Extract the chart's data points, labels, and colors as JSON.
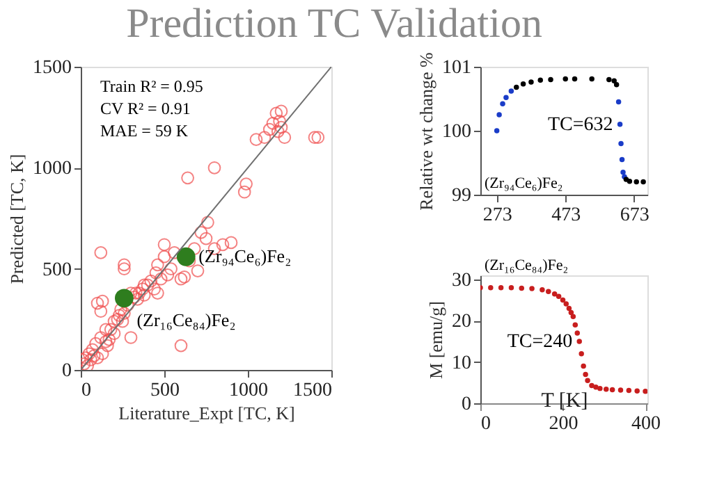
{
  "chart_data": [
    {
      "type": "scatter",
      "title": "Prediction TC Validation",
      "xlabel": "Literature_Expt [TC, K]",
      "ylabel": "Predicted [TC, K]",
      "xlim": [
        0,
        1500
      ],
      "ylim": [
        0,
        1500
      ],
      "xticks": [
        0,
        500,
        1000,
        1500
      ],
      "yticks": [
        0,
        500,
        1000,
        1500
      ],
      "grid": false,
      "series": [
        {
          "type": "scatter",
          "marker": "circle",
          "color": "#f05050",
          "x": [
            10,
            20,
            30,
            40,
            50,
            60,
            70,
            80,
            90,
            100,
            120,
            130,
            150,
            160,
            170,
            180,
            200,
            220,
            240,
            250,
            260,
            280,
            300,
            320,
            340,
            350,
            370,
            380,
            400,
            420,
            440,
            450,
            460,
            480,
            500,
            500,
            520,
            540,
            600,
            620,
            650,
            680,
            700,
            720,
            750,
            760,
            800,
            850,
            900,
            640,
            800,
            980,
            990,
            1050,
            1100,
            1130,
            1150,
            1170,
            1180,
            1200,
            1200,
            1220,
            1400,
            1420,
            120,
            260,
            260,
            100,
            120,
            130,
            600,
            300,
            150,
            200,
            230,
            330,
            380,
            460,
            560,
            1190
          ],
          "values": [
            50,
            30,
            60,
            20,
            80,
            50,
            100,
            70,
            130,
            60,
            160,
            80,
            140,
            120,
            150,
            200,
            180,
            250,
            300,
            240,
            280,
            320,
            380,
            360,
            350,
            380,
            400,
            370,
            420,
            440,
            400,
            480,
            520,
            450,
            560,
            620,
            470,
            500,
            450,
            460,
            540,
            600,
            490,
            680,
            650,
            730,
            600,
            620,
            630,
            950,
            1000,
            880,
            920,
            1140,
            1150,
            1190,
            1220,
            1270,
            1180,
            1200,
            1280,
            1150,
            1150,
            1150,
            580,
            500,
            520,
            330,
            290,
            340,
            120,
            160,
            200,
            240,
            270,
            380,
            420,
            380,
            580,
            1230
          ]
        },
        {
          "type": "scatter",
          "marker": "circle",
          "color": "#2e7d1e",
          "x": [
            260,
            630
          ],
          "values": [
            355,
            560
          ]
        },
        {
          "type": "line",
          "marker": "none",
          "color": "#707070",
          "x": [
            0,
            1500
          ],
          "values": [
            0,
            1500
          ]
        }
      ],
      "annotations": [
        "Train R² = 0.95",
        "CV R² = 0.91",
        "MAE   = 59 K",
        {
          "text": "(Zr₉₄Ce₆)Fe₂",
          "x": 630,
          "y": 560
        },
        {
          "text": "(Zr₁₆Ce₈₄)Fe₂",
          "x": 260,
          "y": 355
        }
      ]
    },
    {
      "type": "scatter",
      "ylabel": "Relative wt change %",
      "xlim": [
        225,
        712
      ],
      "ylim": [
        99,
        101
      ],
      "xticks": [
        273,
        473,
        673
      ],
      "yticks": [
        99,
        100,
        101
      ],
      "grid": false,
      "series": [
        {
          "type": "scatter",
          "marker": "circle",
          "x": [
            273,
            280,
            290,
            300,
            315,
            330,
            350,
            373,
            400,
            430,
            473,
            500,
            550,
            600,
            615,
            622,
            628,
            632,
            635,
            638,
            641,
            645,
            650,
            660,
            680,
            700
          ],
          "values": [
            100.0,
            100.25,
            100.42,
            100.52,
            100.62,
            100.68,
            100.73,
            100.76,
            100.79,
            100.8,
            100.81,
            100.81,
            100.81,
            100.8,
            100.78,
            100.72,
            100.45,
            100.1,
            99.8,
            99.55,
            99.35,
            99.28,
            99.24,
            99.21,
            99.2,
            99.2
          ],
          "colors": [
            "#1a3cc8",
            "#1a3cc8",
            "#1a3cc8",
            "#1a3cc8",
            "#1a3cc8",
            "#000000",
            "#000000",
            "#000000",
            "#000000",
            "#000000",
            "#000000",
            "#000000",
            "#000000",
            "#000000",
            "#000000",
            "#000000",
            "#1a3cc8",
            "#1a3cc8",
            "#1a3cc8",
            "#1a3cc8",
            "#1a3cc8",
            "#1a3cc8",
            "#000000",
            "#000000",
            "#000000",
            "#000000"
          ]
        }
      ],
      "annotations": [
        {
          "text": "TC=632",
          "x": 632,
          "y": 100.1
        },
        "(Zr₉₄Ce₆)Fe₂"
      ]
    },
    {
      "type": "scatter",
      "xlabel": "T [K]",
      "ylabel": "M [emu/g]",
      "xlim": [
        0,
        405
      ],
      "ylim": [
        0,
        31
      ],
      "xticks": [
        0,
        200,
        400
      ],
      "yticks": [
        0,
        10,
        20,
        30
      ],
      "grid": false,
      "series": [
        {
          "type": "scatter",
          "marker": "circle",
          "color": "#c81e1e",
          "x": [
            0,
            25,
            50,
            75,
            100,
            125,
            150,
            165,
            180,
            190,
            200,
            208,
            215,
            220,
            225,
            230,
            235,
            240,
            245,
            250,
            255,
            260,
            270,
            280,
            290,
            305,
            320,
            340,
            360,
            380,
            400
          ],
          "values": [
            28,
            28,
            28,
            28,
            27.9,
            27.8,
            27.5,
            27.1,
            26.5,
            25.9,
            25,
            24.1,
            23,
            22,
            21,
            19,
            17,
            15,
            12,
            9,
            7,
            5.5,
            4.3,
            3.9,
            3.6,
            3.4,
            3.3,
            3.2,
            3.1,
            3.0,
            2.9
          ]
        }
      ],
      "annotations": [
        {
          "text": "TC=240",
          "x": 240,
          "y": 15
        },
        "(Zr₁₆Ce₈₄)Fe₂"
      ]
    }
  ]
}
